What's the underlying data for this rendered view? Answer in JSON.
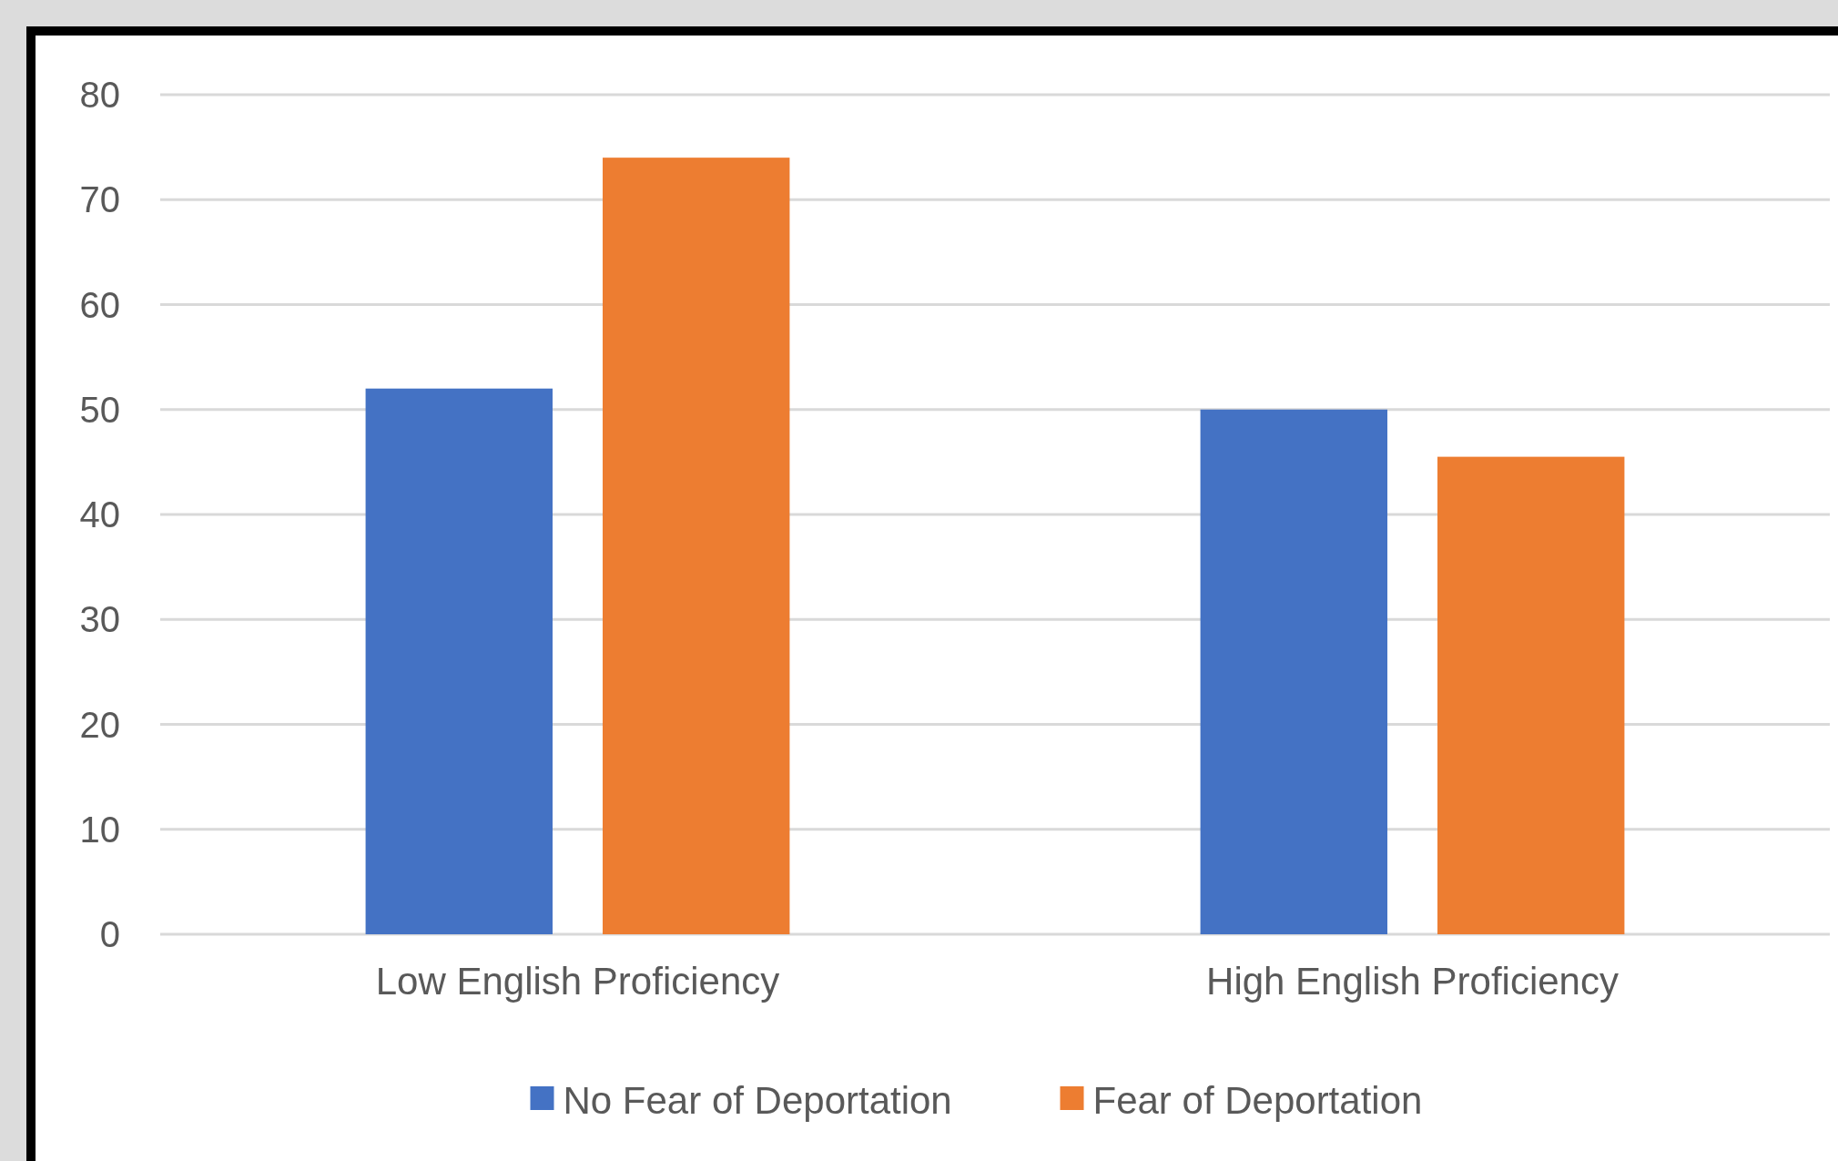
{
  "chart_data": {
    "type": "bar",
    "categories": [
      "Low English Proficiency",
      "High English Proficiency"
    ],
    "series": [
      {
        "name": "No Fear of Deportation",
        "color": "#4472c4",
        "values": [
          52,
          50
        ]
      },
      {
        "name": "Fear of Deportation",
        "color": "#ed7d31",
        "values": [
          74,
          45.5
        ]
      }
    ],
    "ylim": [
      0,
      80
    ],
    "yticks": [
      0,
      10,
      20,
      30,
      40,
      50,
      60,
      70,
      80
    ],
    "grid": "y",
    "legend": "bottom"
  }
}
